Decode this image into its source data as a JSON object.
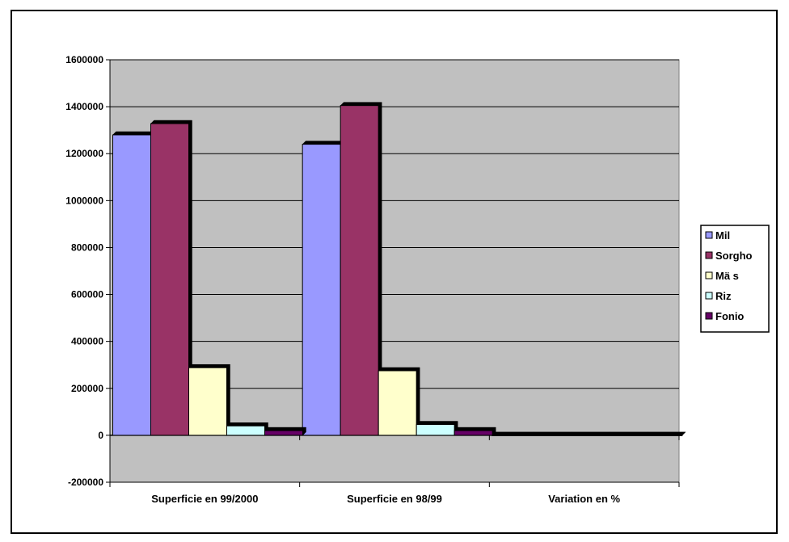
{
  "chart_data": {
    "type": "bar",
    "categories": [
      "Superficie en  99/2000",
      "Superficie en 98/99",
      "Variation en %"
    ],
    "series": [
      {
        "name": "Mil",
        "values": [
          1280000,
          1240000,
          3
        ],
        "color": "#9999FF"
      },
      {
        "name": "Sorgho",
        "values": [
          1328000,
          1405000,
          -5
        ],
        "color": "#993366"
      },
      {
        "name": "Mä s",
        "values": [
          288000,
          275000,
          5
        ],
        "color": "#FFFFCC"
      },
      {
        "name": "Riz",
        "values": [
          40000,
          46000,
          -13
        ],
        "color": "#CCFFFF"
      },
      {
        "name": "Fonio",
        "values": [
          20000,
          20000,
          0
        ],
        "color": "#660066"
      }
    ],
    "ylim": [
      -200000,
      1600000
    ],
    "yticks": [
      -200000,
      0,
      200000,
      400000,
      600000,
      800000,
      1000000,
      1200000,
      1400000,
      1600000
    ],
    "grid": true,
    "plot_background": "#C0C0C0",
    "legend_position": "right"
  }
}
